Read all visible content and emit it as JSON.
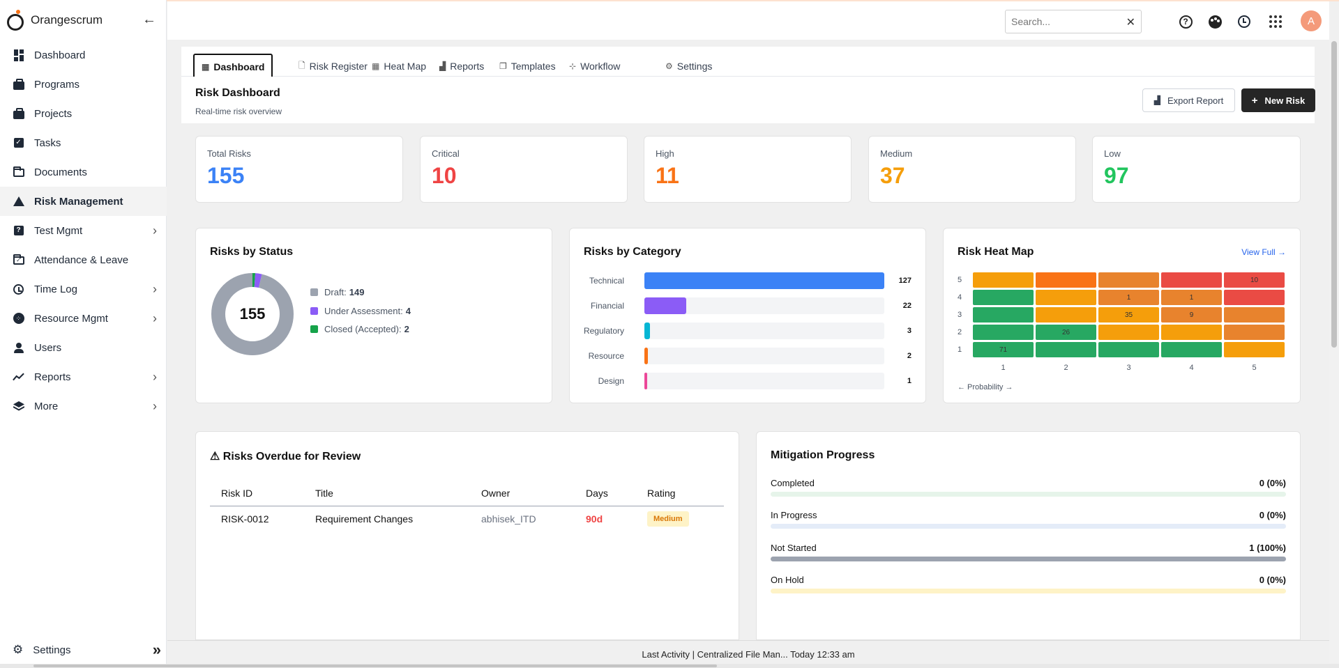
{
  "app": {
    "name": "Orangescrum"
  },
  "sidebar": {
    "items": [
      {
        "label": "Dashboard",
        "icon": "dashboard-icon"
      },
      {
        "label": "Programs",
        "icon": "briefcase-icon"
      },
      {
        "label": "Projects",
        "icon": "briefcase-icon"
      },
      {
        "label": "Tasks",
        "icon": "checkbox-icon"
      },
      {
        "label": "Documents",
        "icon": "folder-icon"
      },
      {
        "label": "Risk Management",
        "icon": "warning-icon",
        "active": true
      },
      {
        "label": "Test Mgmt",
        "icon": "quiz-icon",
        "chevron": true
      },
      {
        "label": "Attendance & Leave",
        "icon": "calendar-check-icon"
      },
      {
        "label": "Time Log",
        "icon": "clock-icon",
        "chevron": true
      },
      {
        "label": "Resource Mgmt",
        "icon": "resource-icon",
        "chevron": true
      },
      {
        "label": "Users",
        "icon": "person-icon"
      },
      {
        "label": "Reports",
        "icon": "trend-icon",
        "chevron": true
      },
      {
        "label": "More",
        "icon": "layers-icon",
        "chevron": true
      }
    ],
    "settings_label": "Settings"
  },
  "header": {
    "search_placeholder": "Search...",
    "avatar_initial": "A"
  },
  "tabs": [
    {
      "label": "Dashboard",
      "icon": "dashboard-icon",
      "active": true
    },
    {
      "label": "Risk Register",
      "icon": "document-icon"
    },
    {
      "label": "Heat Map",
      "icon": "grid-icon"
    },
    {
      "label": "Reports",
      "icon": "bar-chart-icon"
    },
    {
      "label": "Templates",
      "icon": "copy-icon"
    },
    {
      "label": "Workflow",
      "icon": "workflow-icon"
    },
    {
      "label": "Settings",
      "icon": "gear-icon"
    }
  ],
  "page": {
    "title": "Risk Dashboard",
    "subtitle": "Real-time risk overview",
    "export_label": "Export Report",
    "new_label": "New Risk"
  },
  "stats": [
    {
      "label": "Total Risks",
      "value": "155",
      "color": "#3b82f6"
    },
    {
      "label": "Critical",
      "value": "10",
      "color": "#ef4444"
    },
    {
      "label": "High",
      "value": "11",
      "color": "#f97316"
    },
    {
      "label": "Medium",
      "value": "37",
      "color": "#f59e0b"
    },
    {
      "label": "Low",
      "value": "97",
      "color": "#22c55e"
    }
  ],
  "status_card": {
    "title": "Risks by Status",
    "total": "155",
    "legend": [
      {
        "label": "Draft:",
        "value": "149",
        "count": 149,
        "color": "#9ca3af"
      },
      {
        "label": "Under Assessment:",
        "value": "4",
        "count": 4,
        "color": "#8b5cf6"
      },
      {
        "label": "Closed (Accepted):",
        "value": "2",
        "count": 2,
        "color": "#16a34a"
      }
    ]
  },
  "category_card": {
    "title": "Risks by Category",
    "max": 127,
    "rows": [
      {
        "label": "Technical",
        "value": "127",
        "count": 127,
        "color": "#3b82f6"
      },
      {
        "label": "Financial",
        "value": "22",
        "count": 22,
        "color": "#8b5cf6"
      },
      {
        "label": "Regulatory",
        "value": "3",
        "count": 3,
        "color": "#06b6d4"
      },
      {
        "label": "Resource",
        "value": "2",
        "count": 2,
        "color": "#f97316"
      },
      {
        "label": "Design",
        "value": "1",
        "count": 1,
        "color": "#ec4899"
      }
    ]
  },
  "heatmap_card": {
    "title": "Risk Heat Map",
    "view_full": "View Full →",
    "axis_label": "← Probability →",
    "row_labels": [
      "5",
      "4",
      "3",
      "2",
      "1"
    ],
    "col_labels": [
      "1",
      "2",
      "3",
      "4",
      "5"
    ],
    "cells": [
      [
        {
          "v": "",
          "c": "#f59e0b"
        },
        {
          "v": "",
          "c": "#f97316"
        },
        {
          "v": "",
          "c": "#e8832d"
        },
        {
          "v": "",
          "c": "#ea4b44"
        },
        {
          "v": "10",
          "c": "#ea4b44"
        }
      ],
      [
        {
          "v": "",
          "c": "#27a862"
        },
        {
          "v": "",
          "c": "#f59e0b"
        },
        {
          "v": "1",
          "c": "#e8832d"
        },
        {
          "v": "1",
          "c": "#e8832d"
        },
        {
          "v": "",
          "c": "#ea4b44"
        }
      ],
      [
        {
          "v": "",
          "c": "#27a862"
        },
        {
          "v": "",
          "c": "#f59e0b"
        },
        {
          "v": "35",
          "c": "#f59e0b"
        },
        {
          "v": "9",
          "c": "#e8832d"
        },
        {
          "v": "",
          "c": "#e8832d"
        }
      ],
      [
        {
          "v": "",
          "c": "#27a862"
        },
        {
          "v": "26",
          "c": "#27a862"
        },
        {
          "v": "",
          "c": "#f59e0b"
        },
        {
          "v": "",
          "c": "#f59e0b"
        },
        {
          "v": "",
          "c": "#e8832d"
        }
      ],
      [
        {
          "v": "71",
          "c": "#27a862"
        },
        {
          "v": "",
          "c": "#27a862"
        },
        {
          "v": "",
          "c": "#27a862"
        },
        {
          "v": "",
          "c": "#27a862"
        },
        {
          "v": "",
          "c": "#f59e0b"
        }
      ]
    ]
  },
  "overdue_card": {
    "title": "⚠ Risks Overdue for Review",
    "columns": [
      "Risk ID",
      "Title",
      "Owner",
      "Days",
      "Rating"
    ],
    "rows": [
      {
        "id": "RISK-0012",
        "title": "Requirement Changes",
        "owner": "abhisek_ITD",
        "days": "90d",
        "rating": "Medium"
      }
    ]
  },
  "mitigation_card": {
    "title": "Mitigation Progress",
    "rows": [
      {
        "label": "Completed",
        "value": "0 (0%)",
        "percent": 0,
        "track": "#e6f4ea"
      },
      {
        "label": "In Progress",
        "value": "0 (0%)",
        "percent": 0,
        "track": "#e4ecf8"
      },
      {
        "label": "Not Started",
        "value": "1 (100%)",
        "percent": 100,
        "track": "#9ca3af"
      },
      {
        "label": "On Hold",
        "value": "0 (0%)",
        "percent": 0,
        "track": "#fef3c7"
      }
    ]
  },
  "footer": {
    "text": "Last Activity | Centralized File Man... Today 12:33 am"
  }
}
